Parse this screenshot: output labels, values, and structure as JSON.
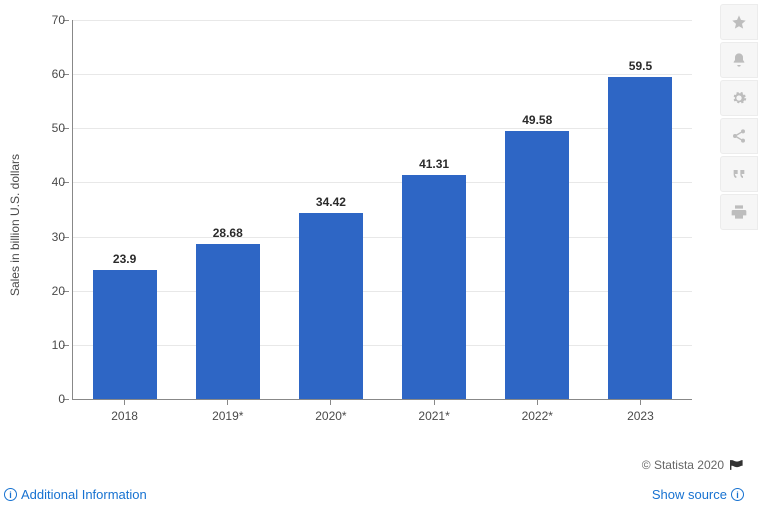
{
  "chart": {
    "type": "bar",
    "ylabel": "Sales in billion U.S. dollars",
    "label_fontsize": 12,
    "ylim": [
      0,
      70
    ],
    "ytick_step": 10,
    "yticks": [
      0,
      10,
      20,
      30,
      40,
      50,
      60,
      70
    ],
    "categories": [
      "2018",
      "2019*",
      "2020*",
      "2021*",
      "2022*",
      "2023"
    ],
    "values": [
      23.9,
      28.68,
      34.42,
      41.31,
      49.58,
      59.5
    ],
    "value_labels": [
      "23.9",
      "28.68",
      "34.42",
      "41.31",
      "49.58",
      "59.5"
    ],
    "bar_color": "#2e66c5",
    "background_color": "#ffffff",
    "grid_color": "#e8e8e8",
    "axis_color": "#888888",
    "text_color": "#4a4a4a",
    "value_label_color": "#2b2b2b",
    "bar_width": 0.62
  },
  "footer": {
    "copyright": "© Statista 2020",
    "additional_info": "Additional Information",
    "show_source": "Show source"
  },
  "toolbar": {
    "icons": [
      "star-icon",
      "bell-icon",
      "gear-icon",
      "share-icon",
      "quote-icon",
      "print-icon"
    ]
  },
  "colors": {
    "link": "#1772d1",
    "toolbar_bg": "#f6f6f6",
    "toolbar_icon": "#bdbdbd"
  }
}
